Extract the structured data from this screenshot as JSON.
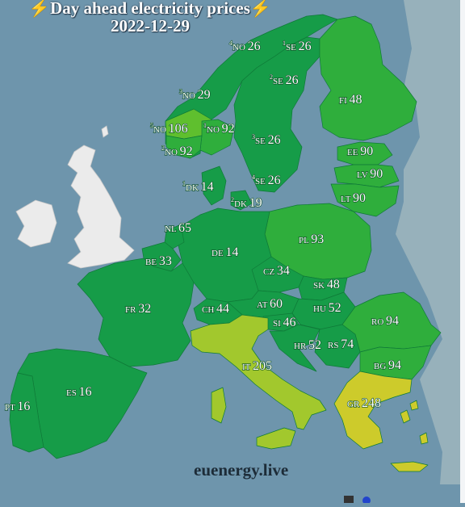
{
  "title": {
    "text": "Day ahead electricity prices",
    "date": "2022-12-29",
    "bolt_left": "⚡",
    "bolt_right": "⚡"
  },
  "credit": "euenergy.live",
  "colors": {
    "sea": "#6e95ac",
    "non_data": "#ebebeb",
    "dark_green": "#169c48",
    "mid_green": "#2fae3c",
    "light_green": "#5fbf2e",
    "lime": "#a2c82d",
    "olive": "#cdcb2b"
  },
  "zones": [
    {
      "sup": "4",
      "code": "NO",
      "value": "26",
      "color": "#169c48"
    },
    {
      "sup": "1",
      "code": "SE",
      "value": "26",
      "color": "#169c48"
    },
    {
      "sup": "2",
      "code": "SE",
      "value": "26",
      "color": "#169c48"
    },
    {
      "sup": "3",
      "code": "NO",
      "value": "29",
      "color": "#169c48"
    },
    {
      "sup": "",
      "code": "FI",
      "value": "48",
      "color": "#2fae3c"
    },
    {
      "sup": "5",
      "code": "NO",
      "value": "106",
      "color": "#5fbf2e"
    },
    {
      "sup": "1",
      "code": "NO",
      "value": "92",
      "color": "#2fae3c"
    },
    {
      "sup": "2",
      "code": "NO",
      "value": "92",
      "color": "#2fae3c"
    },
    {
      "sup": "3",
      "code": "SE",
      "value": "26",
      "color": "#169c48"
    },
    {
      "sup": "",
      "code": "EE",
      "value": "90",
      "color": "#2fae3c"
    },
    {
      "sup": "",
      "code": "LV",
      "value": "90",
      "color": "#2fae3c"
    },
    {
      "sup": "4",
      "code": "SE",
      "value": "26",
      "color": "#169c48"
    },
    {
      "sup": "1",
      "code": "DK",
      "value": "14",
      "color": "#169c48"
    },
    {
      "sup": "2",
      "code": "DK",
      "value": "19",
      "color": "#169c48"
    },
    {
      "sup": "",
      "code": "LT",
      "value": "90",
      "color": "#2fae3c"
    },
    {
      "sup": "",
      "code": "NL",
      "value": "65",
      "color": "#169c48"
    },
    {
      "sup": "",
      "code": "PL",
      "value": "93",
      "color": "#2fae3c"
    },
    {
      "sup": "",
      "code": "BE",
      "value": "33",
      "color": "#169c48"
    },
    {
      "sup": "",
      "code": "DE",
      "value": "14",
      "color": "#169c48"
    },
    {
      "sup": "",
      "code": "CZ",
      "value": "34",
      "color": "#169c48"
    },
    {
      "sup": "",
      "code": "SK",
      "value": "48",
      "color": "#169c48"
    },
    {
      "sup": "",
      "code": "FR",
      "value": "32",
      "color": "#169c48"
    },
    {
      "sup": "",
      "code": "CH",
      "value": "44",
      "color": "#169c48"
    },
    {
      "sup": "",
      "code": "AT",
      "value": "60",
      "color": "#169c48"
    },
    {
      "sup": "",
      "code": "HU",
      "value": "52",
      "color": "#169c48"
    },
    {
      "sup": "",
      "code": "RO",
      "value": "94",
      "color": "#2fae3c"
    },
    {
      "sup": "",
      "code": "SI",
      "value": "46",
      "color": "#169c48"
    },
    {
      "sup": "",
      "code": "HR",
      "value": "52",
      "color": "#169c48"
    },
    {
      "sup": "",
      "code": "RS",
      "value": "74",
      "color": "#169c48"
    },
    {
      "sup": "",
      "code": "BG",
      "value": "94",
      "color": "#2fae3c"
    },
    {
      "sup": "",
      "code": "IT",
      "value": "205",
      "color": "#a2c82d"
    },
    {
      "sup": "",
      "code": "ES",
      "value": "16",
      "color": "#169c48"
    },
    {
      "sup": "",
      "code": "PT",
      "value": "16",
      "color": "#169c48"
    },
    {
      "sup": "",
      "code": "GR",
      "value": "248",
      "color": "#cdcb2b"
    }
  ]
}
